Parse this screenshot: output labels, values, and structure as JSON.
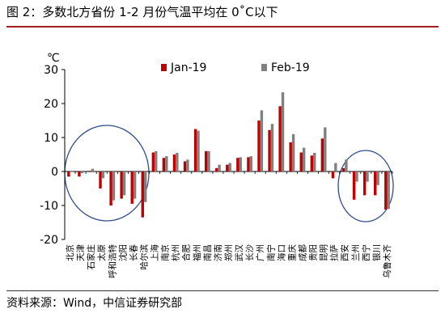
{
  "header": {
    "title": "图 2：多数北方省份 1-2 月份气温平均在 0˚C以下"
  },
  "footer": {
    "source": "资料来源：Wind，中信证券研究部"
  },
  "colors": {
    "jan": "#c00000",
    "feb": "#808080",
    "ellipse": "#2e4f8f",
    "rule": "#a31f1f"
  },
  "chart_data": {
    "type": "bar",
    "unit_label": "℃",
    "ylim": [
      -20,
      30
    ],
    "yticks": [
      30,
      20,
      10,
      0,
      -10,
      -20
    ],
    "categories": [
      "北京",
      "天津",
      "石家庄",
      "太原",
      "呼和浩特",
      "沈阳",
      "长春",
      "哈尔滨",
      "上海",
      "南京",
      "杭州",
      "合肥",
      "福州",
      "南昌",
      "济南",
      "郑州",
      "武汉",
      "长沙",
      "广州",
      "南宁",
      "海口",
      "重庆",
      "成都",
      "贵阳",
      "昆明",
      "拉萨",
      "西安",
      "兰州",
      "西宁",
      "银川",
      "乌鲁木齐"
    ],
    "series": [
      {
        "name": "Jan-19",
        "values": [
          -1.5,
          -1.5,
          0.2,
          -5,
          -10,
          -8,
          -9.5,
          -13.5,
          5.6,
          4,
          5,
          3,
          12.5,
          6,
          1,
          2,
          4,
          4.2,
          15,
          12.2,
          19.2,
          8.6,
          5.6,
          4.7,
          9.7,
          -2,
          1,
          -8.3,
          -7,
          -7,
          -11.2
        ]
      },
      {
        "name": "Feb-19",
        "values": [
          0,
          -0.5,
          0.8,
          -2,
          -8.5,
          -7,
          -8,
          -9,
          6,
          4.5,
          5.5,
          3.5,
          12,
          6,
          2,
          2.5,
          4.2,
          4.5,
          18,
          14,
          23.3,
          11,
          7,
          5.5,
          13,
          2.5,
          3.5,
          -3,
          -3,
          -4,
          -11
        ]
      }
    ],
    "grid": false,
    "legend": "top"
  }
}
